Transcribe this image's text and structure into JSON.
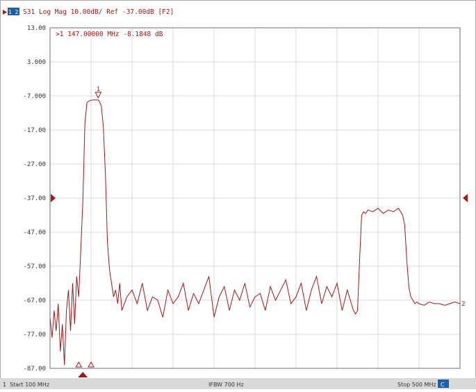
{
  "header": {
    "channel_badge": "1 2",
    "trace_info": "S31 Log Mag 10.00dB/ Ref -37.00dB [F2]"
  },
  "marker": {
    "readout": ">1  147.00000 MHz  -8.1848 dB",
    "number": "1",
    "freq_mhz": 147,
    "value_db": -8.1848
  },
  "trace_end_label": "2",
  "status_bar": {
    "channel": "1",
    "start": "Start 100 MHz",
    "ifbw": "IFBW 700 Hz",
    "stop": "Stop 500 MHz",
    "badge": "C"
  },
  "colors": {
    "trace": "#a01818",
    "grid": "#d8d8d8",
    "frame": "#6e6e6e",
    "ref_marker": "#b01515",
    "status_bg": "#d9d9d9",
    "header_badge": "#1a5fa8"
  },
  "chart_data": {
    "type": "line",
    "x_unit": "MHz",
    "xlim": [
      100,
      500
    ],
    "ylim": [
      -87,
      13
    ],
    "reference_level": -37,
    "y_ticks": [
      "13.00",
      "3.000",
      "-7.000",
      "-17.00",
      "-27.00",
      "-37.00",
      "-47.00",
      "-57.00",
      "-67.00",
      "-77.00",
      "-87.00"
    ],
    "grid": true,
    "series": [
      {
        "x": [
          100,
          102,
          104,
          106,
          108,
          110,
          112,
          114,
          116,
          118,
          120,
          122,
          124,
          126,
          128,
          130,
          132,
          134,
          136,
          138,
          140,
          142,
          144,
          146,
          147,
          148,
          150,
          152,
          154,
          156,
          158,
          160,
          162,
          164,
          166,
          168,
          170,
          175,
          180,
          185,
          190,
          195,
          200,
          205,
          210,
          215,
          220,
          225,
          230,
          235,
          240,
          245,
          250,
          255,
          260,
          265,
          270,
          275,
          280,
          285,
          290,
          295,
          300,
          305,
          310,
          315,
          320,
          325,
          330,
          335,
          340,
          345,
          350,
          355,
          360,
          365,
          370,
          375,
          380,
          385,
          390,
          392,
          394,
          396,
          398,
          400,
          402,
          404,
          406,
          408,
          410,
          415,
          420,
          425,
          430,
          435,
          440,
          442,
          444,
          446,
          448,
          450,
          452,
          454,
          456,
          458,
          460,
          465,
          470,
          475,
          480,
          485,
          490,
          495,
          500
        ],
        "y": [
          -72,
          -78,
          -70,
          -76,
          -68,
          -82,
          -74,
          -86,
          -70,
          -64,
          -76,
          -62,
          -74,
          -60,
          -66,
          -52,
          -38,
          -15,
          -9,
          -8.5,
          -8.3,
          -8.2,
          -8.2,
          -8.2,
          -8.18,
          -8.6,
          -10,
          -16,
          -30,
          -50,
          -58,
          -62,
          -66,
          -64,
          -68,
          -62,
          -70,
          -66,
          -64,
          -68,
          -62,
          -70,
          -66,
          -67,
          -72,
          -64,
          -68,
          -66,
          -62,
          -70,
          -65,
          -68,
          -64,
          -60,
          -72,
          -66,
          -63,
          -70,
          -64,
          -67,
          -62,
          -69,
          -66,
          -65,
          -70,
          -63,
          -67,
          -64,
          -61,
          -68,
          -66,
          -62,
          -70,
          -64,
          -60,
          -68,
          -63,
          -66,
          -62,
          -70,
          -64,
          -66,
          -68,
          -70,
          -71,
          -70,
          -55,
          -42,
          -41,
          -41.5,
          -40.5,
          -41,
          -40,
          -41.5,
          -40.5,
          -41,
          -40,
          -41,
          -42,
          -45,
          -55,
          -63,
          -66,
          -67,
          -68,
          -67.5,
          -68,
          -68.5,
          -67.5,
          -68,
          -68,
          -68.5,
          -68,
          -67.5,
          -68
        ]
      }
    ]
  }
}
